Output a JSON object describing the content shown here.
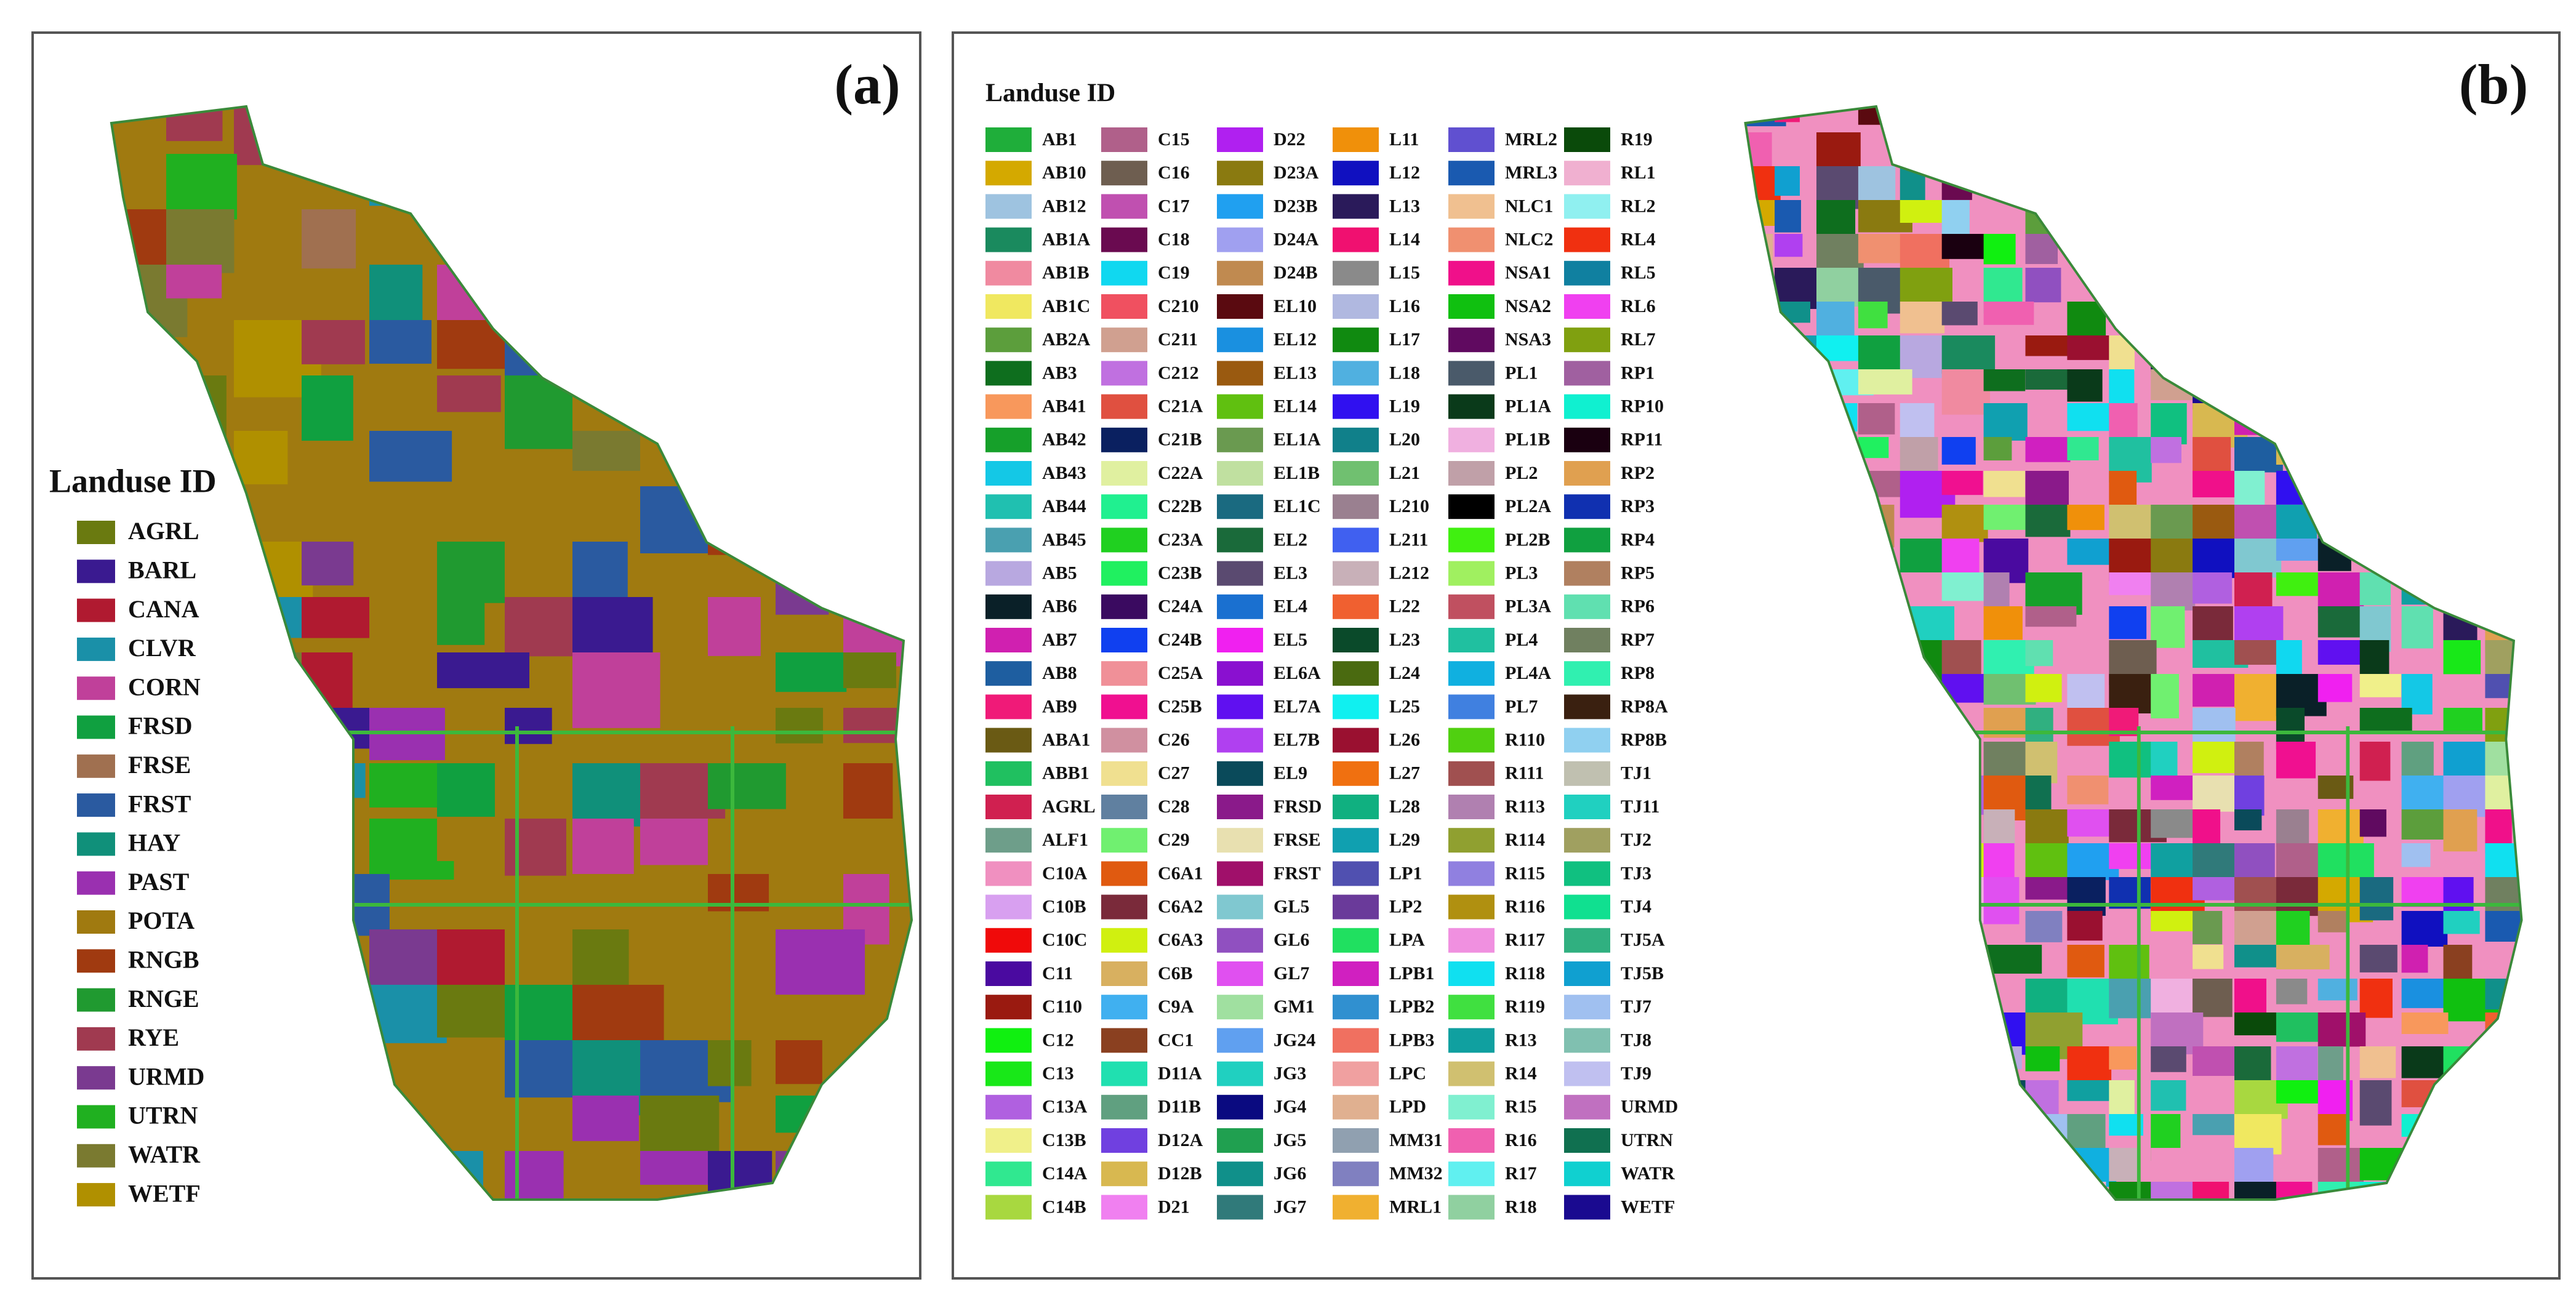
{
  "panels": [
    {
      "label": "(a)",
      "legend": {
        "title": "Landuse ID",
        "items": [
          {
            "label": "AGRL",
            "color": "#6a7a10"
          },
          {
            "label": "BARL",
            "color": "#3a1a90"
          },
          {
            "label": "CANA",
            "color": "#b01a30"
          },
          {
            "label": "CLVR",
            "color": "#1a90a8"
          },
          {
            "label": "CORN",
            "color": "#c0409a"
          },
          {
            "label": "FRSD",
            "color": "#10a040"
          },
          {
            "label": "FRSE",
            "color": "#a07050"
          },
          {
            "label": "FRST",
            "color": "#2a5aa0"
          },
          {
            "label": "HAY",
            "color": "#10907a"
          },
          {
            "label": "PAST",
            "color": "#9a30b0"
          },
          {
            "label": "POTA",
            "color": "#a07a10"
          },
          {
            "label": "RNGB",
            "color": "#a03a10"
          },
          {
            "label": "RNGE",
            "color": "#209a30"
          },
          {
            "label": "RYE",
            "color": "#a03a50"
          },
          {
            "label": "URMD",
            "color": "#7a3a90"
          },
          {
            "label": "UTRN",
            "color": "#20b020"
          },
          {
            "label": "WATR",
            "color": "#7a7a30"
          },
          {
            "label": "WETF",
            "color": "#b09000"
          }
        ]
      }
    },
    {
      "label": "(b)",
      "legend": {
        "title": "Landuse ID",
        "items": [
          {
            "label": "AB1",
            "color": "#1fae3a"
          },
          {
            "label": "AB10",
            "color": "#d4a900"
          },
          {
            "label": "AB12",
            "color": "#9ec3e0"
          },
          {
            "label": "AB1A",
            "color": "#1a8a5e"
          },
          {
            "label": "AB1B",
            "color": "#f08aa0"
          },
          {
            "label": "AB1C",
            "color": "#f0e860"
          },
          {
            "label": "AB2A",
            "color": "#5c9e3c"
          },
          {
            "label": "AB3",
            "color": "#0e6e1e"
          },
          {
            "label": "AB41",
            "color": "#f8985c"
          },
          {
            "label": "AB42",
            "color": "#16a02a"
          },
          {
            "label": "AB43",
            "color": "#14c8e6"
          },
          {
            "label": "AB44",
            "color": "#20c0b0"
          },
          {
            "label": "AB45",
            "color": "#4aa0b0"
          },
          {
            "label": "AB5",
            "color": "#b8a8e0"
          },
          {
            "label": "AB6",
            "color": "#0a2028"
          },
          {
            "label": "AB7",
            "color": "#d020b0"
          },
          {
            "label": "AB8",
            "color": "#1e5ea0"
          },
          {
            "label": "AB9",
            "color": "#f01a78"
          },
          {
            "label": "ABA1",
            "color": "#6a5a14"
          },
          {
            "label": "ABB1",
            "color": "#20c060"
          },
          {
            "label": "AGRL",
            "color": "#d02050"
          },
          {
            "label": "ALF1",
            "color": "#6e9e8a"
          },
          {
            "label": "C10A",
            "color": "#f090c0"
          },
          {
            "label": "C10B",
            "color": "#d8a0f0"
          },
          {
            "label": "C10C",
            "color": "#f00a0a"
          },
          {
            "label": "C11",
            "color": "#4a0aa0"
          },
          {
            "label": "C110",
            "color": "#9a1a10"
          },
          {
            "label": "C12",
            "color": "#10f010"
          },
          {
            "label": "C13",
            "color": "#18e818"
          },
          {
            "label": "C13A",
            "color": "#b060e0"
          },
          {
            "label": "C13B",
            "color": "#f0f08a"
          },
          {
            "label": "C14A",
            "color": "#30e890"
          },
          {
            "label": "C14B",
            "color": "#a8d840"
          },
          {
            "label": "C15",
            "color": "#b0608a"
          },
          {
            "label": "C16",
            "color": "#6e5e50"
          },
          {
            "label": "C17",
            "color": "#c050b0"
          },
          {
            "label": "C18",
            "color": "#6a0a50"
          },
          {
            "label": "C19",
            "color": "#10d8f0"
          },
          {
            "label": "C210",
            "color": "#f05060"
          },
          {
            "label": "C211",
            "color": "#d0a090"
          },
          {
            "label": "C212",
            "color": "#c070e0"
          },
          {
            "label": "C21A",
            "color": "#e05040"
          },
          {
            "label": "C21B",
            "color": "#0a2060"
          },
          {
            "label": "C22A",
            "color": "#e0f0a0"
          },
          {
            "label": "C22B",
            "color": "#20f090"
          },
          {
            "label": "C23A",
            "color": "#20d020"
          },
          {
            "label": "C23B",
            "color": "#20f060"
          },
          {
            "label": "C24A",
            "color": "#3a0a60"
          },
          {
            "label": "C24B",
            "color": "#1040f0"
          },
          {
            "label": "C25A",
            "color": "#f09098"
          },
          {
            "label": "C25B",
            "color": "#f01090"
          },
          {
            "label": "C26",
            "color": "#d090a0"
          },
          {
            "label": "C27",
            "color": "#f0e090"
          },
          {
            "label": "C28",
            "color": "#6080a0"
          },
          {
            "label": "C29",
            "color": "#70f070"
          },
          {
            "label": "C6A1",
            "color": "#e05a10"
          },
          {
            "label": "C6A2",
            "color": "#7a2a3a"
          },
          {
            "label": "C6A3",
            "color": "#d0f010"
          },
          {
            "label": "C6B",
            "color": "#d8b060"
          },
          {
            "label": "C9A",
            "color": "#40b0f0"
          },
          {
            "label": "CC1",
            "color": "#8a4020"
          },
          {
            "label": "D11A",
            "color": "#20e0b0"
          },
          {
            "label": "D11B",
            "color": "#60a080"
          },
          {
            "label": "D12A",
            "color": "#7040e0"
          },
          {
            "label": "D12B",
            "color": "#d8b850"
          },
          {
            "label": "D21",
            "color": "#f080f0"
          },
          {
            "label": "D22",
            "color": "#b020f0"
          },
          {
            "label": "D23A",
            "color": "#8a7a10"
          },
          {
            "label": "D23B",
            "color": "#20a0f0"
          },
          {
            "label": "D24A",
            "color": "#a0a0f0"
          },
          {
            "label": "D24B",
            "color": "#c08a50"
          },
          {
            "label": "EL10",
            "color": "#5a0a10"
          },
          {
            "label": "EL12",
            "color": "#1a90e0"
          },
          {
            "label": "EL13",
            "color": "#9a5a10"
          },
          {
            "label": "EL14",
            "color": "#60c010"
          },
          {
            "label": "EL1A",
            "color": "#6a9a50"
          },
          {
            "label": "EL1B",
            "color": "#c0e0a0"
          },
          {
            "label": "EL1C",
            "color": "#1a6a80"
          },
          {
            "label": "EL2",
            "color": "#1a6a3a"
          },
          {
            "label": "EL3",
            "color": "#5a4a70"
          },
          {
            "label": "EL4",
            "color": "#1a70d0"
          },
          {
            "label": "EL5",
            "color": "#f020f0"
          },
          {
            "label": "EL6A",
            "color": "#8a10d0"
          },
          {
            "label": "EL7A",
            "color": "#6010f0"
          },
          {
            "label": "EL7B",
            "color": "#b040f0"
          },
          {
            "label": "EL9",
            "color": "#0a4a5a"
          },
          {
            "label": "FRSD",
            "color": "#8a1a8a"
          },
          {
            "label": "FRSE",
            "color": "#e8e0b0"
          },
          {
            "label": "FRST",
            "color": "#a0106a"
          },
          {
            "label": "GL5",
            "color": "#80c8d0"
          },
          {
            "label": "GL6",
            "color": "#9050c0"
          },
          {
            "label": "GL7",
            "color": "#e050f0"
          },
          {
            "label": "GM1",
            "color": "#a0e0a0"
          },
          {
            "label": "JG24",
            "color": "#60a0f0"
          },
          {
            "label": "JG3",
            "color": "#20d0c0"
          },
          {
            "label": "JG4",
            "color": "#0a0a80"
          },
          {
            "label": "JG5",
            "color": "#20a050"
          },
          {
            "label": "JG6",
            "color": "#10908a"
          },
          {
            "label": "JG7",
            "color": "#307a7a"
          },
          {
            "label": "L11",
            "color": "#f0900a"
          },
          {
            "label": "L12",
            "color": "#1010c0"
          },
          {
            "label": "L13",
            "color": "#2a1a5a"
          },
          {
            "label": "L14",
            "color": "#f01070"
          },
          {
            "label": "L15",
            "color": "#8a8a8a"
          },
          {
            "label": "L16",
            "color": "#b0b8e0"
          },
          {
            "label": "L17",
            "color": "#108a10"
          },
          {
            "label": "L18",
            "color": "#50b0e0"
          },
          {
            "label": "L19",
            "color": "#3010f0"
          },
          {
            "label": "L20",
            "color": "#10808a"
          },
          {
            "label": "L21",
            "color": "#70c070"
          },
          {
            "label": "L210",
            "color": "#9a8090"
          },
          {
            "label": "L211",
            "color": "#4060f0"
          },
          {
            "label": "L212",
            "color": "#c8b0b8"
          },
          {
            "label": "L22",
            "color": "#f06030"
          },
          {
            "label": "L23",
            "color": "#0a4a2a"
          },
          {
            "label": "L24",
            "color": "#4a6a10"
          },
          {
            "label": "L25",
            "color": "#10f0f0"
          },
          {
            "label": "L26",
            "color": "#9a1030"
          },
          {
            "label": "L27",
            "color": "#f07010"
          },
          {
            "label": "L28",
            "color": "#10b080"
          },
          {
            "label": "L29",
            "color": "#10a0b0"
          },
          {
            "label": "LP1",
            "color": "#5050b0"
          },
          {
            "label": "LP2",
            "color": "#6a3a9a"
          },
          {
            "label": "LPA",
            "color": "#20e060"
          },
          {
            "label": "LPB1",
            "color": "#d020c0"
          },
          {
            "label": "LPB2",
            "color": "#3090d0"
          },
          {
            "label": "LPB3",
            "color": "#f07060"
          },
          {
            "label": "LPC",
            "color": "#f0a0a0"
          },
          {
            "label": "LPD",
            "color": "#e0b090"
          },
          {
            "label": "MM31",
            "color": "#90a0b0"
          },
          {
            "label": "MM32",
            "color": "#8080c0"
          },
          {
            "label": "MRL1",
            "color": "#f0b030"
          },
          {
            "label": "MRL2",
            "color": "#6050d0"
          },
          {
            "label": "MRL3",
            "color": "#1a5ab0"
          },
          {
            "label": "NLC1",
            "color": "#f0c090"
          },
          {
            "label": "NLC2",
            "color": "#f09070"
          },
          {
            "label": "NSA1",
            "color": "#f0108a"
          },
          {
            "label": "NSA2",
            "color": "#10c010"
          },
          {
            "label": "NSA3",
            "color": "#600a60"
          },
          {
            "label": "PL1",
            "color": "#4a5a6a"
          },
          {
            "label": "PL1A",
            "color": "#0a3a1a"
          },
          {
            "label": "PL1B",
            "color": "#f0b0e0"
          },
          {
            "label": "PL2",
            "color": "#c0a0a8"
          },
          {
            "label": "PL2A",
            "color": "#000000"
          },
          {
            "label": "PL2B",
            "color": "#40f010"
          },
          {
            "label": "PL3",
            "color": "#a0f060"
          },
          {
            "label": "PL3A",
            "color": "#c05060"
          },
          {
            "label": "PL4",
            "color": "#20c0a0"
          },
          {
            "label": "PL4A",
            "color": "#10b0e0"
          },
          {
            "label": "PL7",
            "color": "#4080e0"
          },
          {
            "label": "R110",
            "color": "#50d010"
          },
          {
            "label": "R111",
            "color": "#a05050"
          },
          {
            "label": "R113",
            "color": "#b080b0"
          },
          {
            "label": "R114",
            "color": "#90a030"
          },
          {
            "label": "R115",
            "color": "#9080e0"
          },
          {
            "label": "R116",
            "color": "#b09010"
          },
          {
            "label": "R117",
            "color": "#f090e0"
          },
          {
            "label": "R118",
            "color": "#10e0f0"
          },
          {
            "label": "R119",
            "color": "#40e040"
          },
          {
            "label": "R13",
            "color": "#10a0a0"
          },
          {
            "label": "R14",
            "color": "#d0c070"
          },
          {
            "label": "R15",
            "color": "#80f0d0"
          },
          {
            "label": "R16",
            "color": "#f060b0"
          },
          {
            "label": "R17",
            "color": "#60f0f0"
          },
          {
            "label": "R18",
            "color": "#90d0a0"
          },
          {
            "label": "R19",
            "color": "#0a4a0a"
          },
          {
            "label": "RL1",
            "color": "#f0b0d0"
          },
          {
            "label": "RL2",
            "color": "#90f0f0"
          },
          {
            "label": "RL4",
            "color": "#f03010"
          },
          {
            "label": "RL5",
            "color": "#1080a0"
          },
          {
            "label": "RL6",
            "color": "#f040f0"
          },
          {
            "label": "RL7",
            "color": "#80a010"
          },
          {
            "label": "RP1",
            "color": "#a060a0"
          },
          {
            "label": "RP10",
            "color": "#10f0d0"
          },
          {
            "label": "RP11",
            "color": "#1a0010"
          },
          {
            "label": "RP2",
            "color": "#e0a050"
          },
          {
            "label": "RP3",
            "color": "#1030b0"
          },
          {
            "label": "RP4",
            "color": "#10a040"
          },
          {
            "label": "RP5",
            "color": "#b08060"
          },
          {
            "label": "RP6",
            "color": "#60e0b0"
          },
          {
            "label": "RP7",
            "color": "#708060"
          },
          {
            "label": "RP8",
            "color": "#30f0b0"
          },
          {
            "label": "RP8A",
            "color": "#3a2010"
          },
          {
            "label": "RP8B",
            "color": "#90d0f0"
          },
          {
            "label": "TJ1",
            "color": "#c0c0b0"
          },
          {
            "label": "TJ11",
            "color": "#20d0c0"
          },
          {
            "label": "TJ2",
            "color": "#a0a060"
          },
          {
            "label": "TJ3",
            "color": "#10c080"
          },
          {
            "label": "TJ4",
            "color": "#10e090"
          },
          {
            "label": "TJ5A",
            "color": "#30b080"
          },
          {
            "label": "TJ5B",
            "color": "#10a0d0"
          },
          {
            "label": "TJ7",
            "color": "#a0c0f0"
          },
          {
            "label": "TJ8",
            "color": "#80c0b0"
          },
          {
            "label": "TJ9",
            "color": "#c0c0f0"
          },
          {
            "label": "URMD",
            "color": "#c070c0"
          },
          {
            "label": "UTRN",
            "color": "#107050"
          },
          {
            "label": "WATR",
            "color": "#10d0d0"
          },
          {
            "label": "WETF",
            "color": "#1a0a90"
          }
        ]
      }
    }
  ]
}
